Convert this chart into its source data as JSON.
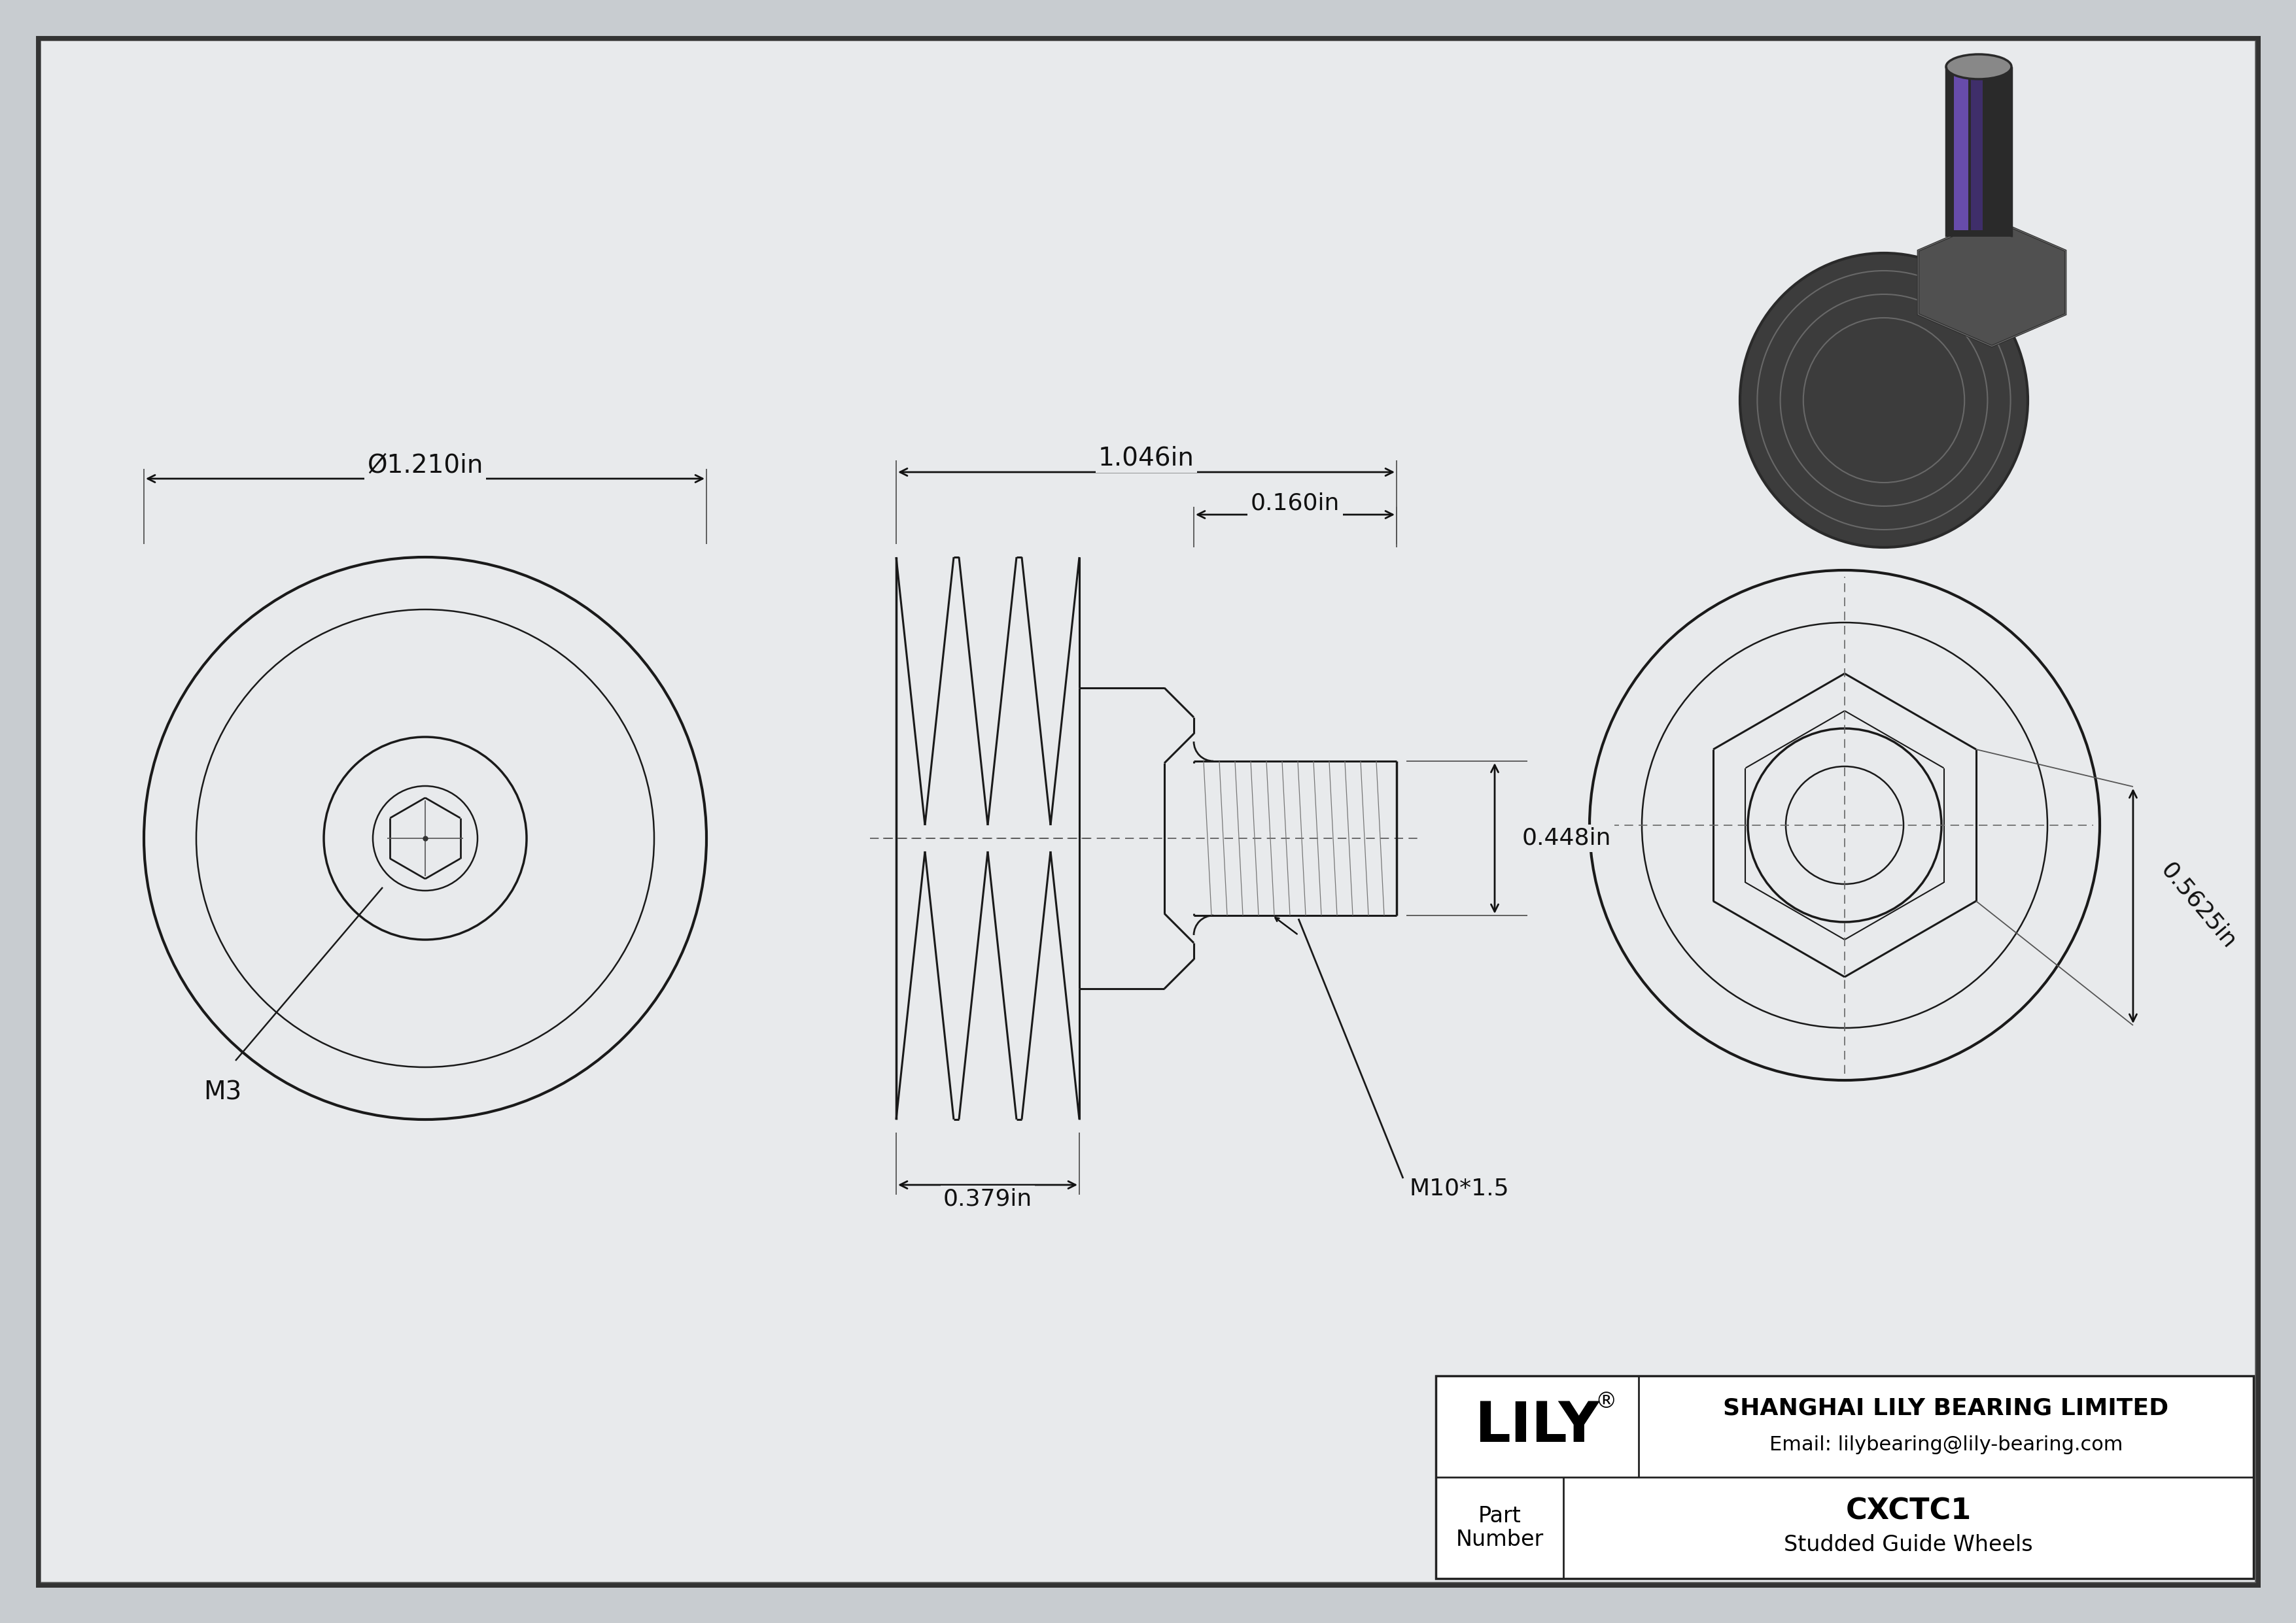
{
  "bg_color": "#c8ccd0",
  "inner_bg": "#e8eaec",
  "border_col": "#555555",
  "line_col": "#1a1a1a",
  "dim_col": "#111111",
  "company": "SHANGHAI LILY BEARING LIMITED",
  "email": "Email: lilybearing@lily-bearing.com",
  "part_number": "CXCTC1",
  "part_desc": "Studded Guide Wheels",
  "part_label_line1": "Part",
  "part_label_line2": "Number",
  "lily_brand": "LILY",
  "dim_diameter": "Ø1.210in",
  "dim_width": "1.046in",
  "dim_stud_len": "0.160in",
  "dim_stud_dia": "0.448in",
  "dim_bottom": "0.379in",
  "dim_thread": "M10*1.5",
  "dim_hex": "M3",
  "dim_side": "0.5625in"
}
